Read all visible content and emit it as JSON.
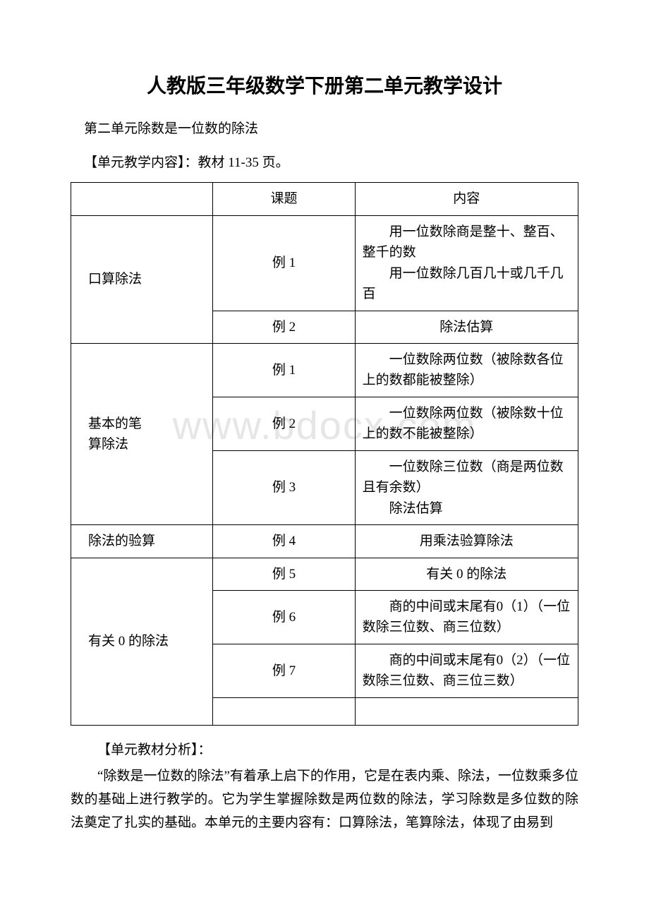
{
  "title": "人教版三年级数学下册第二单元教学设计",
  "subtitle": "第二单元除数是一位数的除法",
  "meta_line": "【单元教学内容】：教材 11-35 页。",
  "watermark": "www.bdocx.com",
  "table": {
    "header": {
      "c2": "课题",
      "c3": "内容"
    },
    "sections": [
      {
        "label": "口算除法",
        "rows": [
          {
            "c2": "例 1",
            "c3_lines": [
              "用一位数除商是整十、整百、整千的数",
              "用一位数除几百几十或几千几百"
            ]
          },
          {
            "c2": "例 2",
            "c3_lines": [
              "除法估算"
            ]
          }
        ]
      },
      {
        "label_lines": [
          "基本的笔",
          "算除法"
        ],
        "rows": [
          {
            "c2": "例 1",
            "c3_lines": [
              "一位数除两位数（被除数各位上的数都能被整除）"
            ]
          },
          {
            "c2": "例 2",
            "c3_lines": [
              "一位数除两位数（被除数十位上的数不能被整除）"
            ]
          },
          {
            "c2": "例 3",
            "c3_lines": [
              "一位数除三位数（商是两位数且有余数）",
              "除法估算"
            ]
          }
        ]
      },
      {
        "label": "除法的验算",
        "rows": [
          {
            "c2": "例 4",
            "c3_lines": [
              "用乘法验算除法"
            ]
          }
        ]
      },
      {
        "label": "有关 0 的除法",
        "rows": [
          {
            "c2": "例 5",
            "c3_lines": [
              "有关 0 的除法"
            ]
          },
          {
            "c2": "例 6",
            "c3_lines": [
              "商的中间或末尾有0（1）（一位数除三位数、商三位数）"
            ]
          },
          {
            "c2": "例 7",
            "c3_lines": [
              "商的中间或末尾有0（2）（一位数除三位数、商三位三数）"
            ]
          }
        ]
      }
    ]
  },
  "analysis_heading": "【单元教材分析】：",
  "analysis_body": "“除数是一位数的除法”有着承上启下的作用，它是在表内乘、除法，一位数乘多位数的基础上进行教学的。它为学生掌握除数是两位数的除法，学习除数是多位数的除法奠定了扎实的基础。本单元的主要内容有：口算除法，笔算除法，体现了由易到"
}
